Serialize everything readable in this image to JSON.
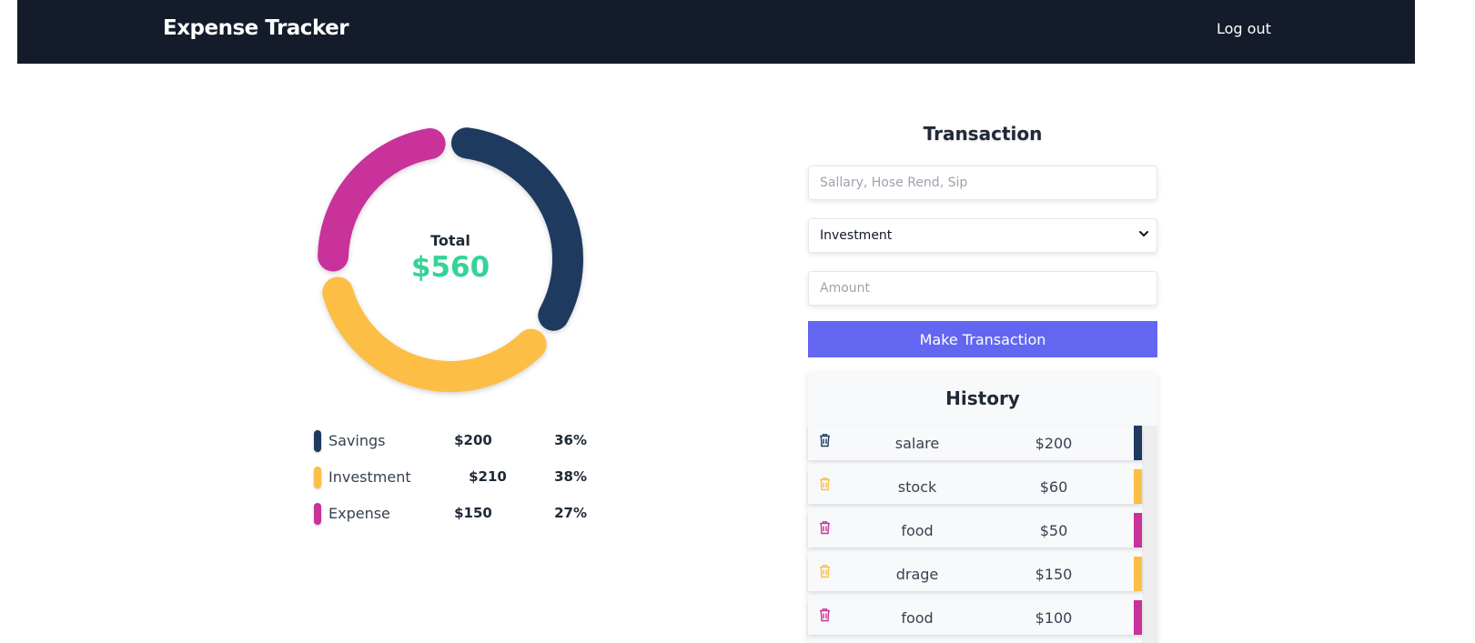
{
  "header": {
    "brand": "Expense Tracker",
    "logout_label": "Log out"
  },
  "chart": {
    "total_label": "Total",
    "total_value": "$560"
  },
  "chart_data": {
    "type": "pie",
    "categories": [
      "Savings",
      "Investment",
      "Expense"
    ],
    "values": [
      200,
      210,
      150
    ],
    "colors": [
      "#1e3a5f",
      "#fcbe44",
      "#c8329a"
    ]
  },
  "legend": [
    {
      "name": "Savings",
      "amount": "$200",
      "percent": "36%",
      "color": "#1e3a5f"
    },
    {
      "name": "Investment",
      "amount": "$210",
      "percent": "38%",
      "color": "#fcbe44"
    },
    {
      "name": "Expense",
      "amount": "$150",
      "percent": "27%",
      "color": "#c8329a"
    }
  ],
  "transaction": {
    "title": "Transaction",
    "name_placeholder": "Sallary, Hose Rend, Sip",
    "type_selected": "Investment",
    "amount_placeholder": "Amount",
    "submit_label": "Make Transaction"
  },
  "history": {
    "title": "History",
    "items": [
      {
        "name": "salare",
        "amount": "$200",
        "color": "#1e3a5f"
      },
      {
        "name": "stock",
        "amount": "$60",
        "color": "#fcbe44"
      },
      {
        "name": "food",
        "amount": "$50",
        "color": "#c8329a"
      },
      {
        "name": "drage",
        "amount": "$150",
        "color": "#fcbe44"
      },
      {
        "name": "food",
        "amount": "$100",
        "color": "#c8329a"
      }
    ]
  },
  "icons": {
    "trash": "trash-icon",
    "chevron": "chevron-down-icon"
  },
  "theme": {
    "navbar_bg": "#141b2b",
    "accent": "#6366f1",
    "total_color": "#34d399"
  }
}
